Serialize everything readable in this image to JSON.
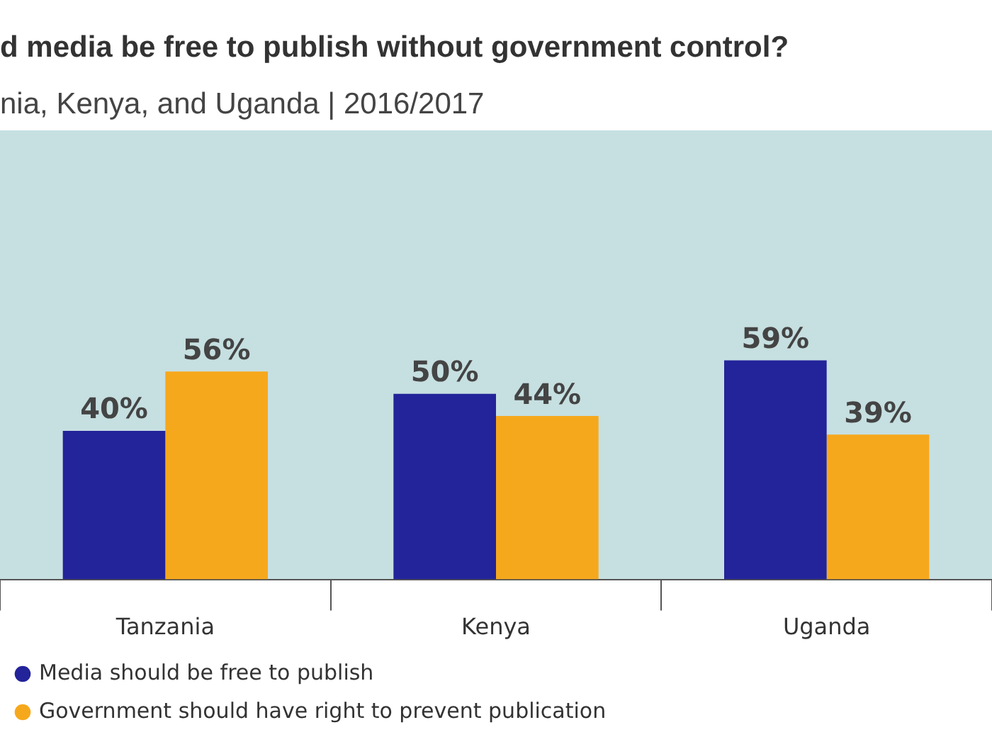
{
  "chart_data": {
    "type": "bar",
    "title": "d media be free to publish without government control?",
    "subtitle": "nia, Kenya, and Uganda  |  2016/2017",
    "categories": [
      "Tanzania",
      "Kenya",
      "Uganda"
    ],
    "series": [
      {
        "name": "Media should be free to publish",
        "color": "#23239a",
        "values": [
          40,
          50,
          59
        ],
        "value_labels": [
          "40%",
          "50%",
          "59%"
        ]
      },
      {
        "name": "Government should have right to prevent publication",
        "color": "#f6a81c",
        "values": [
          56,
          44,
          39
        ],
        "value_labels": [
          "56%",
          "44%",
          "39%"
        ]
      }
    ],
    "legend": "bottom",
    "grid": false
  }
}
